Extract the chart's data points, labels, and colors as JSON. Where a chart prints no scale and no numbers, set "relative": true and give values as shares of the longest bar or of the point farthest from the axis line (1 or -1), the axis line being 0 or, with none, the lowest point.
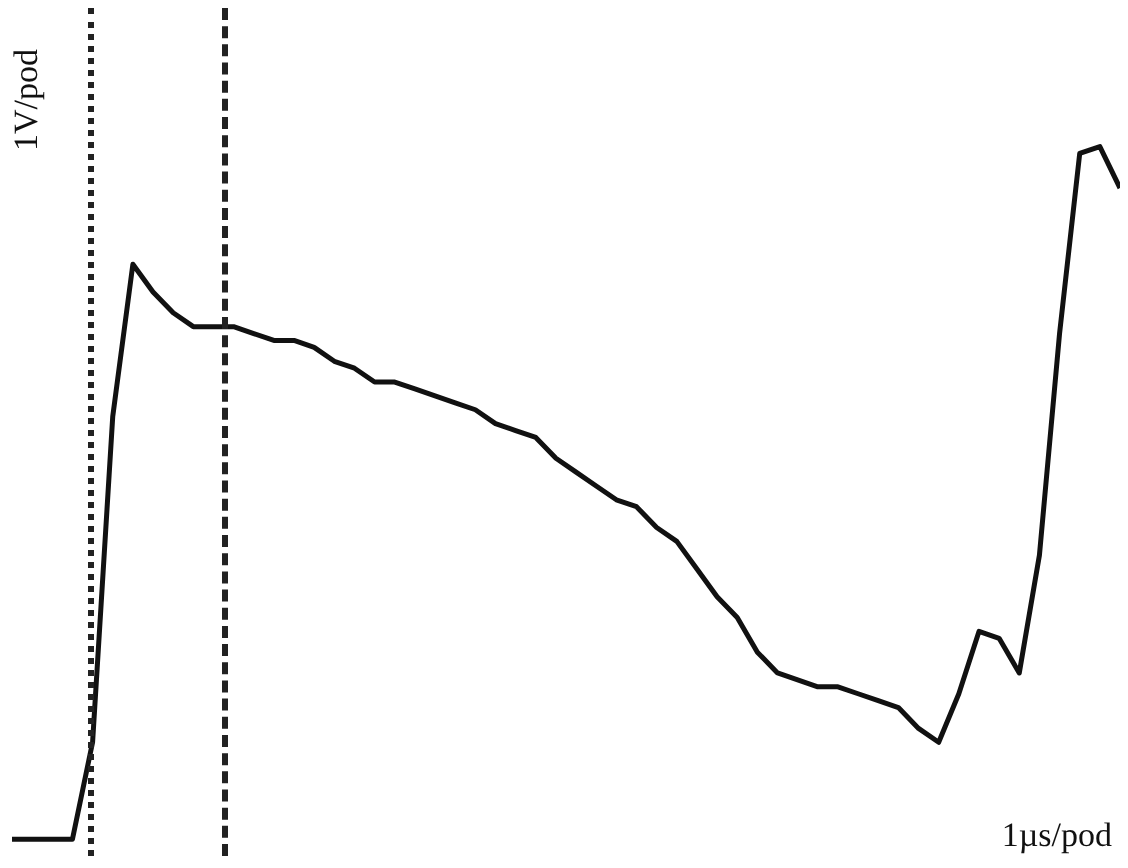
{
  "chart_data": {
    "type": "line",
    "relative": true,
    "categories": [
      null,
      null,
      null,
      null,
      null,
      null,
      null,
      null,
      null,
      null,
      null,
      null,
      null,
      null,
      null,
      null,
      null,
      null,
      null,
      null,
      null,
      null,
      null,
      null,
      null,
      null,
      null,
      null,
      null,
      null,
      null,
      null,
      null,
      null,
      null,
      null,
      null,
      null,
      null,
      null,
      null,
      null,
      null,
      null,
      null,
      null,
      null,
      null,
      null,
      null,
      null,
      null,
      null,
      null,
      null,
      null
    ],
    "series": [
      {
        "color": "#111111",
        "values": [
          0,
          0,
          0,
          0,
          0.14,
          0.61,
          0.83,
          0.79,
          0.76,
          0.74,
          0.74,
          0.74,
          0.73,
          0.72,
          0.72,
          0.71,
          0.69,
          0.68,
          0.66,
          0.66,
          0.65,
          0.64,
          0.63,
          0.62,
          0.6,
          0.59,
          0.58,
          0.55,
          0.53,
          0.51,
          0.49,
          0.48,
          0.45,
          0.43,
          0.39,
          0.35,
          0.32,
          0.27,
          0.24,
          0.23,
          0.22,
          0.22,
          0.21,
          0.2,
          0.19,
          0.16,
          0.14,
          0.21,
          0.3,
          0.29,
          0.24,
          0.41,
          0.73,
          0.99,
          1,
          0.94
        ]
      }
    ],
    "annotations": [
      "1V/pod",
      "1µs/pod"
    ],
    "legend": false,
    "marker": "none",
    "line_style": "solid"
  }
}
